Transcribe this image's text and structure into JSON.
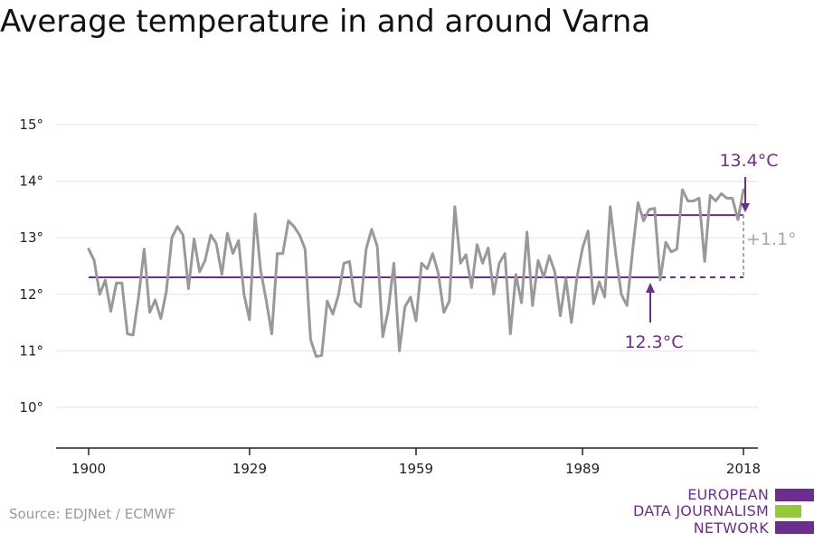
{
  "title": "Average temperature in and around Varna",
  "source": "Source: EDJNet / ECMWF",
  "logo": {
    "lines": [
      "EUROPEAN",
      "DATA JOURNALISM",
      "NETWORK"
    ],
    "colors": {
      "purple": "#6b2e8f",
      "green": "#96c83c"
    }
  },
  "colors": {
    "line": "#999999",
    "accent": "#6b2e8f",
    "delta": "#a8a8a8",
    "grid": "#e3e3e3"
  },
  "chart_data": {
    "type": "line",
    "title": "Average temperature in and around Varna",
    "x_ticks": [
      1900,
      1929,
      1959,
      1989,
      2018
    ],
    "y_ticks": [
      10,
      11,
      12,
      13,
      14,
      15
    ],
    "y_tick_labels": [
      "10°",
      "11°",
      "12°",
      "13°",
      "14°",
      "15°"
    ],
    "xlim": [
      1900,
      2018
    ],
    "ylim": [
      9.3,
      15.5
    ],
    "grid": "horizontal",
    "series": [
      {
        "values": [
          [
            1900,
            12.8
          ],
          [
            1901,
            12.6
          ],
          [
            1902,
            12.0
          ],
          [
            1903,
            12.25
          ],
          [
            1904,
            11.7
          ],
          [
            1905,
            12.2
          ],
          [
            1906,
            12.2
          ],
          [
            1907,
            11.3
          ],
          [
            1908,
            11.28
          ],
          [
            1909,
            11.95
          ],
          [
            1910,
            12.8
          ],
          [
            1911,
            11.68
          ],
          [
            1912,
            11.9
          ],
          [
            1913,
            11.57
          ],
          [
            1914,
            12.05
          ],
          [
            1915,
            13.0
          ],
          [
            1916,
            13.2
          ],
          [
            1917,
            13.05
          ],
          [
            1918,
            12.1
          ],
          [
            1919,
            12.98
          ],
          [
            1920,
            12.4
          ],
          [
            1921,
            12.6
          ],
          [
            1922,
            13.05
          ],
          [
            1923,
            12.9
          ],
          [
            1924,
            12.35
          ],
          [
            1925,
            13.08
          ],
          [
            1926,
            12.72
          ],
          [
            1927,
            12.95
          ],
          [
            1928,
            12.0
          ],
          [
            1929,
            11.55
          ],
          [
            1930,
            13.42
          ],
          [
            1931,
            12.42
          ],
          [
            1932,
            11.9
          ],
          [
            1933,
            11.3
          ],
          [
            1934,
            12.72
          ],
          [
            1935,
            12.72
          ],
          [
            1936,
            13.3
          ],
          [
            1937,
            13.2
          ],
          [
            1938,
            13.05
          ],
          [
            1939,
            12.8
          ],
          [
            1940,
            11.2
          ],
          [
            1941,
            10.9
          ],
          [
            1942,
            10.92
          ],
          [
            1943,
            11.88
          ],
          [
            1944,
            11.65
          ],
          [
            1945,
            11.98
          ],
          [
            1946,
            12.55
          ],
          [
            1947,
            12.58
          ],
          [
            1948,
            11.87
          ],
          [
            1949,
            11.78
          ],
          [
            1950,
            12.8
          ],
          [
            1951,
            13.15
          ],
          [
            1952,
            12.85
          ],
          [
            1953,
            11.25
          ],
          [
            1954,
            11.72
          ],
          [
            1955,
            12.55
          ],
          [
            1956,
            11.0
          ],
          [
            1957,
            11.78
          ],
          [
            1958,
            11.95
          ],
          [
            1959,
            11.53
          ],
          [
            1960,
            12.55
          ],
          [
            1961,
            12.45
          ],
          [
            1962,
            12.72
          ],
          [
            1963,
            12.38
          ],
          [
            1964,
            11.68
          ],
          [
            1965,
            11.88
          ],
          [
            1966,
            13.55
          ],
          [
            1967,
            12.55
          ],
          [
            1968,
            12.7
          ],
          [
            1969,
            12.12
          ],
          [
            1970,
            12.88
          ],
          [
            1971,
            12.55
          ],
          [
            1972,
            12.82
          ],
          [
            1973,
            12.0
          ],
          [
            1974,
            12.55
          ],
          [
            1975,
            12.72
          ],
          [
            1976,
            11.3
          ],
          [
            1977,
            12.35
          ],
          [
            1978,
            11.85
          ],
          [
            1979,
            13.1
          ],
          [
            1980,
            11.8
          ],
          [
            1981,
            12.6
          ],
          [
            1982,
            12.3
          ],
          [
            1983,
            12.68
          ],
          [
            1984,
            12.4
          ],
          [
            1985,
            11.62
          ],
          [
            1986,
            12.28
          ],
          [
            1987,
            11.5
          ],
          [
            1988,
            12.3
          ],
          [
            1989,
            12.82
          ],
          [
            1990,
            13.12
          ],
          [
            1991,
            11.83
          ],
          [
            1992,
            12.22
          ],
          [
            1993,
            11.95
          ],
          [
            1994,
            13.55
          ],
          [
            1995,
            12.7
          ],
          [
            1996,
            12.0
          ],
          [
            1997,
            11.8
          ],
          [
            1998,
            12.75
          ],
          [
            1999,
            13.62
          ],
          [
            2000,
            13.3
          ],
          [
            2001,
            13.5
          ],
          [
            2002,
            13.52
          ],
          [
            2003,
            12.25
          ],
          [
            2004,
            12.92
          ],
          [
            2005,
            12.75
          ],
          [
            2006,
            12.8
          ],
          [
            2007,
            13.85
          ],
          [
            2008,
            13.65
          ],
          [
            2009,
            13.65
          ],
          [
            2010,
            13.7
          ],
          [
            2011,
            12.58
          ],
          [
            2012,
            13.75
          ],
          [
            2013,
            13.65
          ],
          [
            2014,
            13.78
          ],
          [
            2015,
            13.7
          ],
          [
            2016,
            13.7
          ],
          [
            2017,
            13.32
          ],
          [
            2018,
            13.85
          ]
        ]
      }
    ],
    "reference_lines": [
      {
        "label": "12.3°C",
        "value": 12.3,
        "from": 1900,
        "to": 2018
      },
      {
        "label": "13.4°C",
        "value": 13.4,
        "from": 2000,
        "to": 2018
      }
    ],
    "annotations": {
      "delta": "+1.1°"
    }
  }
}
